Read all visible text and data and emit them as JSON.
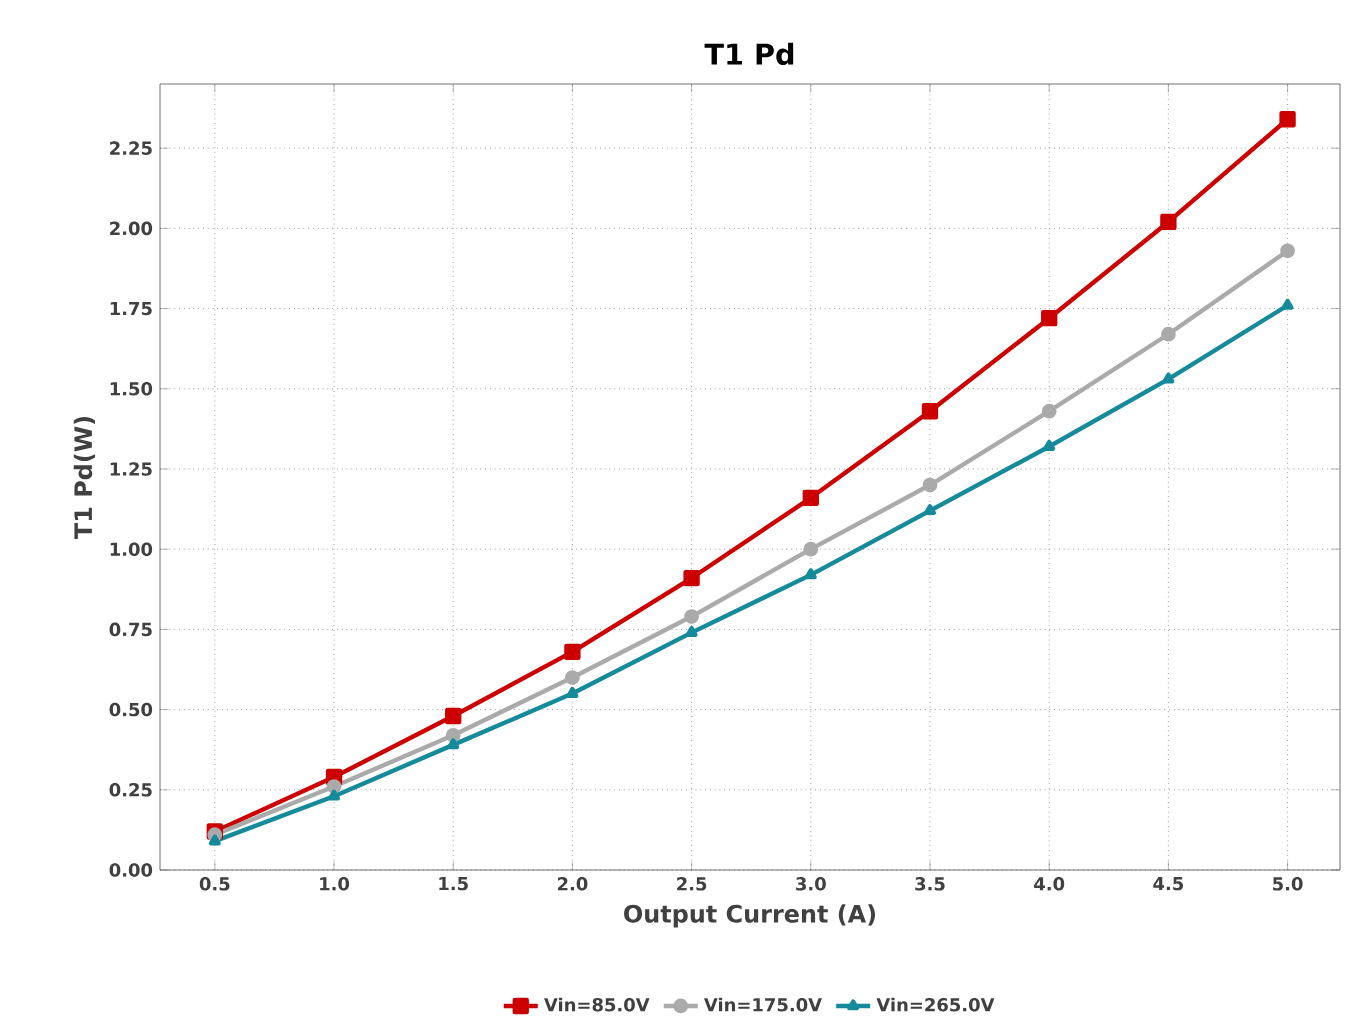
{
  "chart_data": {
    "type": "line",
    "title": "T1 Pd",
    "xlabel": "Output Current (A)",
    "ylabel": "T1 Pd(W)",
    "x": [
      0.5,
      1.0,
      1.5,
      2.0,
      2.5,
      3.0,
      3.5,
      4.0,
      4.5,
      5.0
    ],
    "series": [
      {
        "name": "Vin=85.0V",
        "color": "#cc0000",
        "marker": "square",
        "values": [
          0.12,
          0.29,
          0.48,
          0.68,
          0.91,
          1.16,
          1.43,
          1.72,
          2.02,
          2.34
        ]
      },
      {
        "name": "Vin=175.0V",
        "color": "#aaaaaa",
        "marker": "circle",
        "values": [
          0.11,
          0.26,
          0.42,
          0.6,
          0.79,
          1.0,
          1.2,
          1.43,
          1.67,
          1.93
        ]
      },
      {
        "name": "Vin=265.0V",
        "color": "#158a9a",
        "marker": "triangle",
        "values": [
          0.09,
          0.23,
          0.39,
          0.55,
          0.74,
          0.92,
          1.12,
          1.32,
          1.53,
          1.76
        ]
      }
    ],
    "xlim": [
      0.27,
      5.22
    ],
    "ylim": [
      0,
      2.45
    ],
    "xticks": [
      {
        "value": 0.5,
        "label": "0.5"
      },
      {
        "value": 1.0,
        "label": "1.0"
      },
      {
        "value": 1.5,
        "label": "1.5"
      },
      {
        "value": 2.0,
        "label": "2.0"
      },
      {
        "value": 2.5,
        "label": "2.5"
      },
      {
        "value": 3.0,
        "label": "3.0"
      },
      {
        "value": 3.5,
        "label": "3.5"
      },
      {
        "value": 4.0,
        "label": "4.0"
      },
      {
        "value": 4.5,
        "label": "4.5"
      },
      {
        "value": 5.0,
        "label": "5.0"
      }
    ],
    "yticks": [
      {
        "value": 0,
        "label": "0.00"
      },
      {
        "value": 0.25,
        "label": "0.25"
      },
      {
        "value": 0.5,
        "label": "0.50"
      },
      {
        "value": 0.75,
        "label": "0.75"
      },
      {
        "value": 1.0,
        "label": "1.00"
      },
      {
        "value": 1.25,
        "label": "1.25"
      },
      {
        "value": 1.5,
        "label": "1.50"
      },
      {
        "value": 1.75,
        "label": "1.75"
      },
      {
        "value": 2.0,
        "label": "2.00"
      },
      {
        "value": 2.25,
        "label": "2.25"
      }
    ],
    "grid": true,
    "legend": "bottom",
    "line_style": "solid"
  }
}
